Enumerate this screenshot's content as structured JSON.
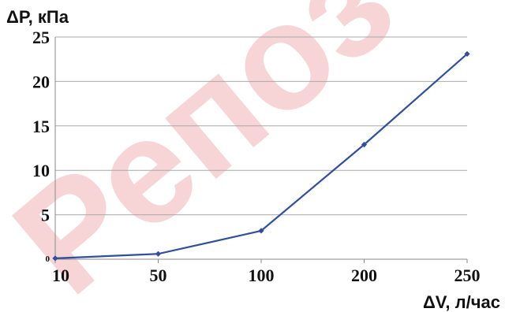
{
  "chart_data": {
    "type": "line",
    "categories": [
      "10",
      "50",
      "100",
      "200",
      "250"
    ],
    "series": [
      {
        "values": [
          0.1,
          0.6,
          3.2,
          12.9,
          23.1
        ]
      }
    ],
    "ylabel": "ΔP, кПа",
    "xlabel": "ΔV, л/час",
    "yticks": [
      "0",
      "5",
      "10",
      "15",
      "20",
      "25"
    ],
    "ylim": [
      0,
      25
    ],
    "grid": true,
    "line_color": "#2f4fa3",
    "marker": "diamond"
  },
  "watermark": {
    "text": "Репоз",
    "color": "#f2b3b8"
  }
}
